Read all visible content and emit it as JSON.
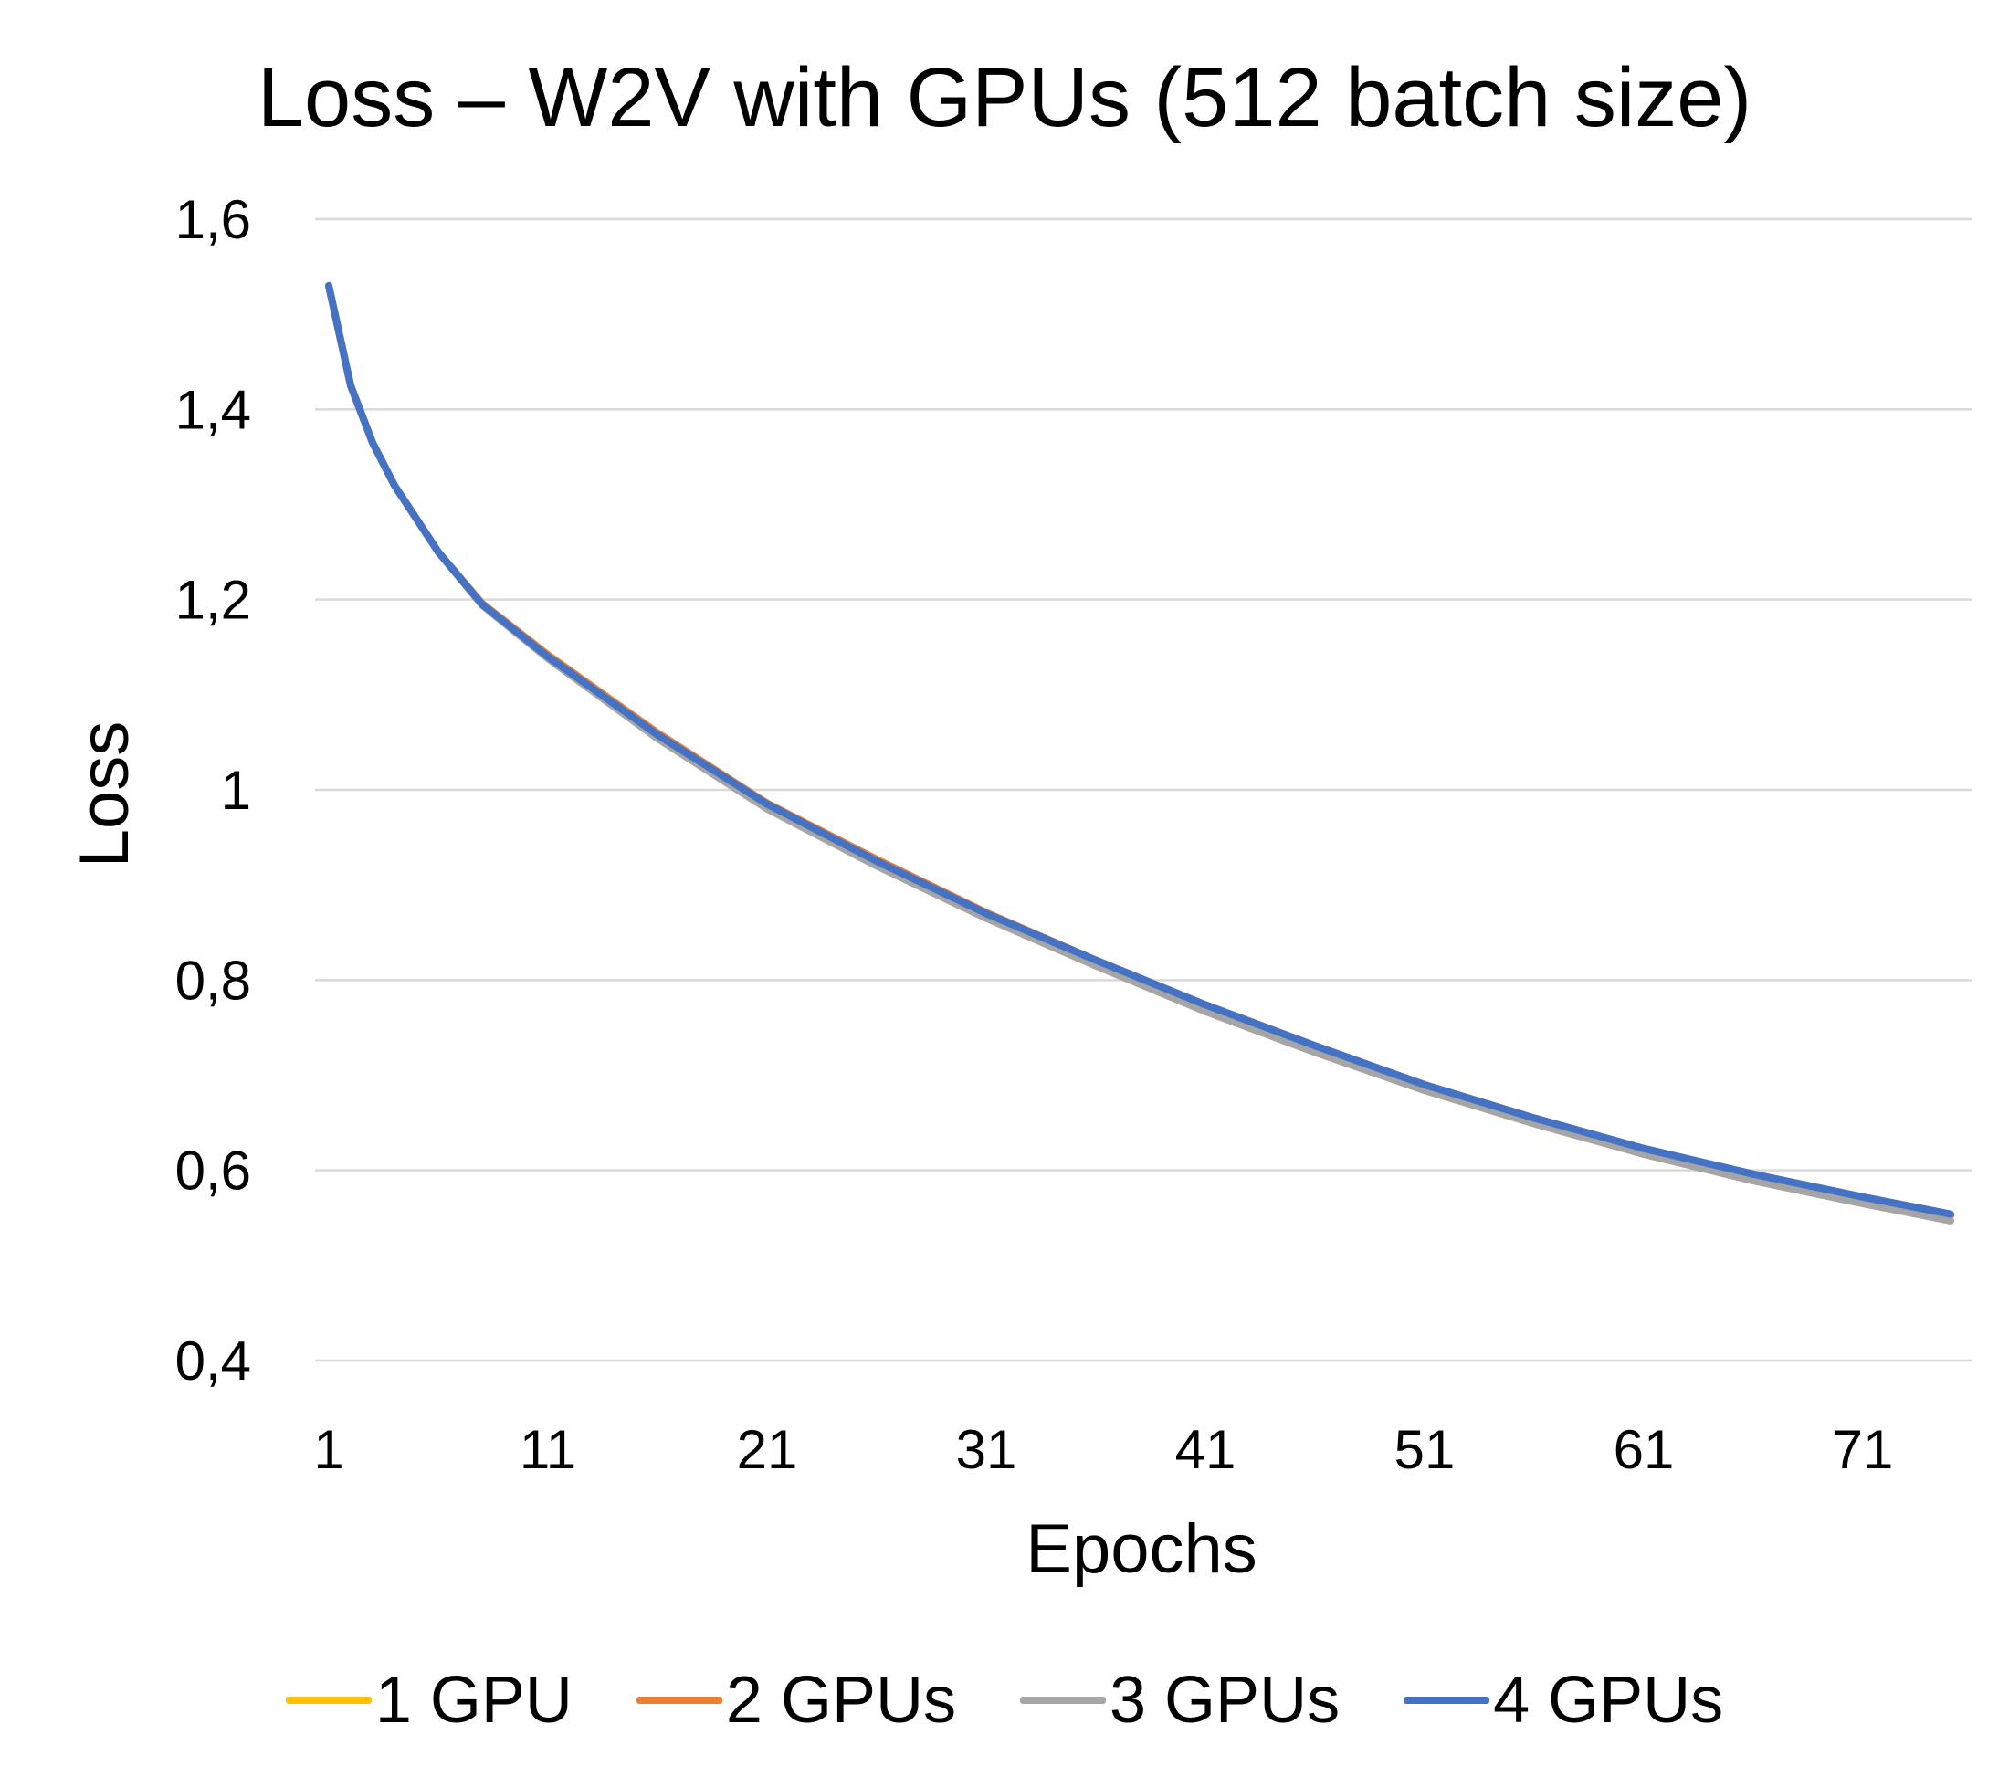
{
  "chart_data": {
    "type": "line",
    "title": "Loss – W2V with GPUs (512 batch size)",
    "xlabel": "Epochs",
    "ylabel": "Loss",
    "ylim": [
      0.4,
      1.6
    ],
    "yticks": [
      "0,4",
      "0,6",
      "0,8",
      "1",
      "1,2",
      "1,4",
      "1,6"
    ],
    "xticks": [
      "1",
      "11",
      "21",
      "31",
      "41",
      "51",
      "61",
      "71"
    ],
    "x_range": [
      1,
      75
    ],
    "grid": "horizontal",
    "legend_position": "bottom",
    "series": [
      {
        "name": "1 GPU",
        "color": "#FFC000",
        "points": [
          [
            1,
            1.53
          ],
          [
            2,
            1.425
          ],
          [
            3,
            1.365
          ],
          [
            4,
            1.32
          ],
          [
            6,
            1.25
          ],
          [
            8,
            1.195
          ],
          [
            11,
            1.14
          ],
          [
            16,
            1.058
          ],
          [
            21,
            0.985
          ],
          [
            26,
            0.925
          ],
          [
            31,
            0.87
          ],
          [
            36,
            0.82
          ],
          [
            41,
            0.773
          ],
          [
            46,
            0.73
          ],
          [
            51,
            0.69
          ],
          [
            56,
            0.655
          ],
          [
            61,
            0.622
          ],
          [
            66,
            0.594
          ],
          [
            71,
            0.57
          ],
          [
            75,
            0.552
          ]
        ]
      },
      {
        "name": "2 GPUs",
        "color": "#ED7D31",
        "points": [
          [
            1,
            1.53
          ],
          [
            2,
            1.425
          ],
          [
            3,
            1.365
          ],
          [
            4,
            1.32
          ],
          [
            6,
            1.25
          ],
          [
            8,
            1.196
          ],
          [
            11,
            1.142
          ],
          [
            16,
            1.06
          ],
          [
            21,
            0.986
          ],
          [
            26,
            0.927
          ],
          [
            31,
            0.871
          ],
          [
            36,
            0.821
          ],
          [
            41,
            0.774
          ],
          [
            46,
            0.731
          ],
          [
            51,
            0.69
          ],
          [
            56,
            0.655
          ],
          [
            61,
            0.623
          ],
          [
            66,
            0.595
          ],
          [
            71,
            0.571
          ],
          [
            75,
            0.553
          ]
        ]
      },
      {
        "name": "3 GPUs",
        "color": "#A5A5A5",
        "points": [
          [
            1,
            1.53
          ],
          [
            2,
            1.425
          ],
          [
            3,
            1.365
          ],
          [
            4,
            1.32
          ],
          [
            6,
            1.25
          ],
          [
            8,
            1.194
          ],
          [
            11,
            1.138
          ],
          [
            16,
            1.054
          ],
          [
            21,
            0.98
          ],
          [
            26,
            0.92
          ],
          [
            31,
            0.865
          ],
          [
            36,
            0.815
          ],
          [
            41,
            0.767
          ],
          [
            46,
            0.724
          ],
          [
            51,
            0.684
          ],
          [
            56,
            0.649
          ],
          [
            61,
            0.617
          ],
          [
            66,
            0.589
          ],
          [
            71,
            0.565
          ],
          [
            75,
            0.547
          ]
        ]
      },
      {
        "name": "4 GPUs",
        "color": "#4472C4",
        "points": [
          [
            1,
            1.53
          ],
          [
            2,
            1.425
          ],
          [
            3,
            1.365
          ],
          [
            4,
            1.32
          ],
          [
            6,
            1.25
          ],
          [
            8,
            1.195
          ],
          [
            11,
            1.14
          ],
          [
            16,
            1.058
          ],
          [
            21,
            0.985
          ],
          [
            26,
            0.925
          ],
          [
            31,
            0.87
          ],
          [
            36,
            0.821
          ],
          [
            41,
            0.774
          ],
          [
            46,
            0.731
          ],
          [
            51,
            0.69
          ],
          [
            56,
            0.655
          ],
          [
            61,
            0.623
          ],
          [
            66,
            0.596
          ],
          [
            71,
            0.572
          ],
          [
            75,
            0.554
          ]
        ]
      }
    ]
  }
}
